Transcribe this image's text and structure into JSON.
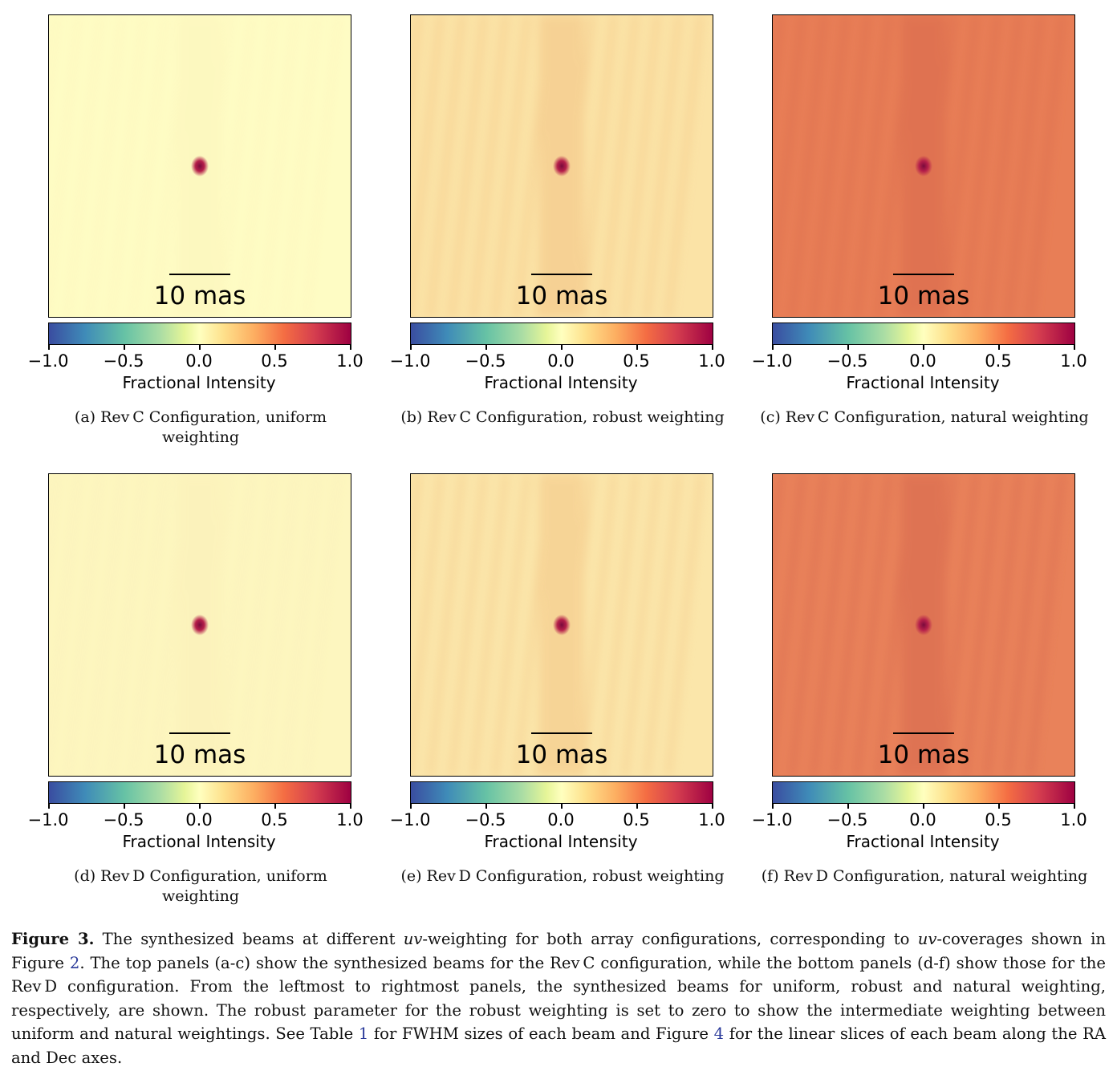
{
  "scale_label": "10 mas",
  "colorbar": {
    "title": "Fractional Intensity",
    "ticks": [
      "−1.0",
      "−0.5",
      "0.0",
      "0.5",
      "1.0"
    ],
    "colormap": "spectral-reversed",
    "range": [
      -1.0,
      1.0
    ]
  },
  "panels": [
    {
      "caption": "(a) Rev C Configuration, uniform weighting",
      "background": "#fefcc4",
      "ripple": "#f7e2a8",
      "ripple_opacity": 0.15
    },
    {
      "caption": "(b) Rev C Configuration, robust weighting",
      "background": "#fbe3a6",
      "ripple": "#f3c486",
      "ripple_opacity": 0.55
    },
    {
      "caption": "(c) Rev C Configuration, natural weighting",
      "background": "#e87e56",
      "ripple": "#d96a4e",
      "ripple_opacity": 0.55
    },
    {
      "caption": "(d) Rev D Configuration, uniform weighting",
      "background": "#fdf6bf",
      "ripple": "#f5e0a8",
      "ripple_opacity": 0.15
    },
    {
      "caption": "(e) Rev D Configuration, robust weighting",
      "background": "#fbe6aa",
      "ripple": "#f4c98a",
      "ripple_opacity": 0.6
    },
    {
      "caption": "(f) Rev D Configuration, natural weighting",
      "background": "#e9825a",
      "ripple": "#d86a50",
      "ripple_opacity": 0.6
    }
  ],
  "caption": {
    "label": "Figure 3.",
    "t1": " The synthesized beams at different ",
    "uv1": "uv",
    "t2": "-weighting for both array configurations, corresponding to ",
    "uv2": "uv",
    "t3": "-coverages shown in Figure ",
    "fig_ref": "2",
    "t4": ".  The top panels (a-c) show the synthesized beams for the Rev C configuration, while the bottom panels (d-f) show those for the Rev D configuration. From the leftmost to rightmost panels, the synthesized beams for uniform, robust and natural weighting, respectively, are shown. The robust parameter for the robust weighting is set to zero to show the intermediate weighting between uniform and natural weightings. See Table ",
    "table_ref": "1",
    "t5": " for FWHM sizes of each beam and Figure ",
    "fig4_ref": "4",
    "t6": " for the linear slices of each beam along the RA and Dec axes."
  }
}
